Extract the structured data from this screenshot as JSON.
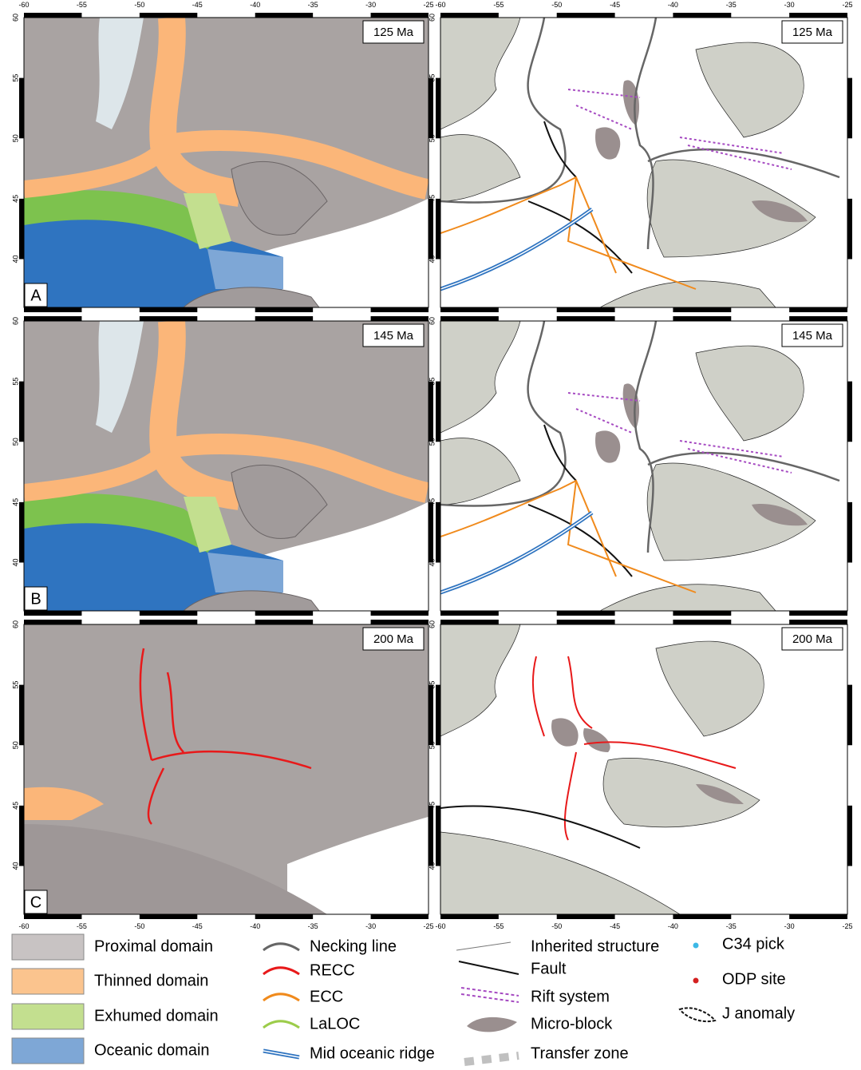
{
  "map": {
    "lon_range": [
      -60,
      -25
    ],
    "lat_range": [
      36,
      60
    ],
    "lon_ticks": [
      -60,
      -55,
      -50,
      -45,
      -40,
      -35,
      -30,
      -25
    ],
    "lat_ticks": [
      60,
      55,
      50,
      45,
      40
    ],
    "rows": [
      {
        "letter": "A",
        "age": "125 Ma"
      },
      {
        "letter": "B",
        "age": "145 Ma"
      },
      {
        "letter": "C",
        "age": "200 Ma"
      }
    ]
  },
  "legend": {
    "domains": [
      "Proximal domain",
      "Thinned domain",
      "Exhumed domain",
      "Oceanic domain"
    ],
    "lines": [
      "Necking line",
      "RECC",
      "ECC",
      "LaLOC",
      "Mid oceanic ridge"
    ],
    "structures": [
      "Inherited structure",
      "Fault",
      "Rift system",
      "Micro-block",
      "Transfer zone"
    ],
    "points": [
      "C34  pick",
      "ODP site",
      "J anomaly"
    ]
  }
}
